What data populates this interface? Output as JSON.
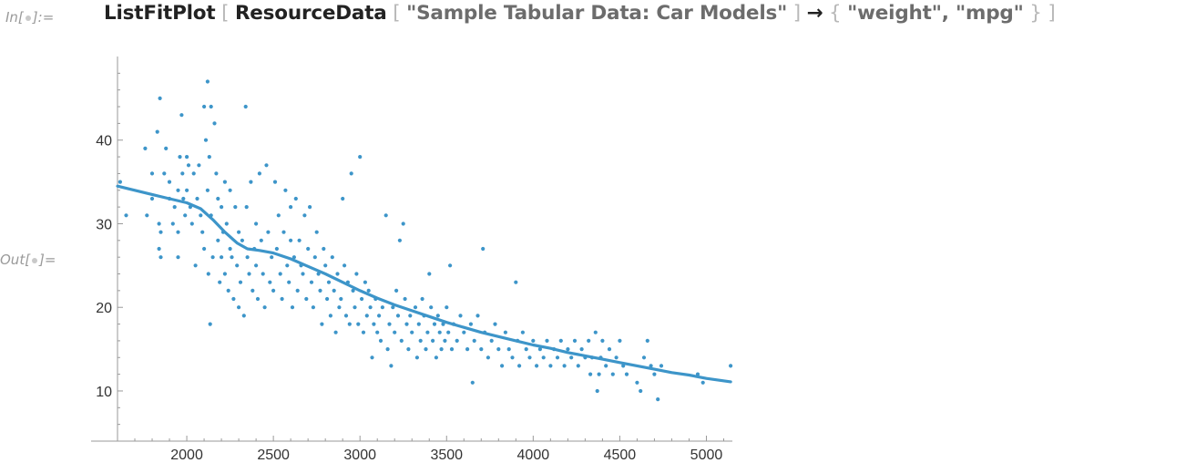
{
  "notebook": {
    "in_prefix": "In[",
    "in_suffix": "]:=",
    "out_prefix": "Out[",
    "out_suffix": "]=",
    "code": {
      "func": "ListFitPlot",
      "open1": " [ ",
      "inner_func": "ResourceData",
      "open2": " [ ",
      "string1": "\"Sample Tabular Data: Car Models\"",
      "close2": " ] ",
      "arrow": "→",
      "open3": " { ",
      "string2": "\"weight\"",
      "comma": ", ",
      "string3": "\"mpg\"",
      "close3": " } ",
      "close1": "]"
    }
  },
  "colors": {
    "points": "#3d95c9",
    "fit": "#3d95c9",
    "axis": "#999999"
  },
  "chart_data": {
    "type": "scatter",
    "title": "",
    "xlabel": "",
    "ylabel": "",
    "xlim": [
      1600,
      5150
    ],
    "ylim": [
      4,
      50
    ],
    "x_ticks": [
      2000,
      2500,
      3000,
      3500,
      4000,
      4500,
      5000
    ],
    "y_ticks": [
      10,
      20,
      30,
      40
    ],
    "series": [
      {
        "kind": "points",
        "points": [
          [
            1615,
            35
          ],
          [
            1650,
            31
          ],
          [
            1760,
            39
          ],
          [
            1770,
            31
          ],
          [
            1800,
            36
          ],
          [
            1800,
            33
          ],
          [
            1830,
            41
          ],
          [
            1840,
            30
          ],
          [
            1840,
            27
          ],
          [
            1845,
            45
          ],
          [
            1850,
            29
          ],
          [
            1850,
            26
          ],
          [
            1870,
            36
          ],
          [
            1880,
            39
          ],
          [
            1900,
            35
          ],
          [
            1900,
            33
          ],
          [
            1920,
            30
          ],
          [
            1930,
            32
          ],
          [
            1950,
            34
          ],
          [
            1950,
            29
          ],
          [
            1950,
            26
          ],
          [
            1960,
            38
          ],
          [
            1970,
            43
          ],
          [
            1975,
            36
          ],
          [
            1980,
            33
          ],
          [
            1990,
            31
          ],
          [
            2000,
            34
          ],
          [
            2000,
            38
          ],
          [
            2010,
            37
          ],
          [
            2020,
            32
          ],
          [
            2030,
            30
          ],
          [
            2040,
            36
          ],
          [
            2050,
            25
          ],
          [
            2060,
            33
          ],
          [
            2070,
            37
          ],
          [
            2080,
            31
          ],
          [
            2090,
            29
          ],
          [
            2100,
            44
          ],
          [
            2100,
            27
          ],
          [
            2110,
            40
          ],
          [
            2120,
            47
          ],
          [
            2120,
            34
          ],
          [
            2125,
            24
          ],
          [
            2130,
            38
          ],
          [
            2135,
            18
          ],
          [
            2140,
            44
          ],
          [
            2140,
            31
          ],
          [
            2150,
            26
          ],
          [
            2160,
            42
          ],
          [
            2170,
            36
          ],
          [
            2180,
            33
          ],
          [
            2180,
            28
          ],
          [
            2190,
            23
          ],
          [
            2200,
            32
          ],
          [
            2200,
            26
          ],
          [
            2210,
            29
          ],
          [
            2220,
            35
          ],
          [
            2220,
            24
          ],
          [
            2230,
            30
          ],
          [
            2240,
            22
          ],
          [
            2250,
            34
          ],
          [
            2250,
            27
          ],
          [
            2260,
            26
          ],
          [
            2270,
            21
          ],
          [
            2280,
            32
          ],
          [
            2290,
            25
          ],
          [
            2300,
            29
          ],
          [
            2300,
            20
          ],
          [
            2310,
            23
          ],
          [
            2320,
            28
          ],
          [
            2330,
            19
          ],
          [
            2340,
            44
          ],
          [
            2345,
            32
          ],
          [
            2350,
            26
          ],
          [
            2360,
            24
          ],
          [
            2370,
            35
          ],
          [
            2380,
            22
          ],
          [
            2390,
            27
          ],
          [
            2400,
            30
          ],
          [
            2400,
            25
          ],
          [
            2410,
            21
          ],
          [
            2420,
            36
          ],
          [
            2430,
            28
          ],
          [
            2440,
            24
          ],
          [
            2450,
            20
          ],
          [
            2460,
            37
          ],
          [
            2470,
            29
          ],
          [
            2480,
            23
          ],
          [
            2490,
            26
          ],
          [
            2500,
            22
          ],
          [
            2510,
            35
          ],
          [
            2520,
            27
          ],
          [
            2530,
            31
          ],
          [
            2540,
            24
          ],
          [
            2550,
            21
          ],
          [
            2560,
            29
          ],
          [
            2570,
            34
          ],
          [
            2580,
            25
          ],
          [
            2590,
            23
          ],
          [
            2600,
            32
          ],
          [
            2600,
            28
          ],
          [
            2610,
            20
          ],
          [
            2620,
            26
          ],
          [
            2630,
            33
          ],
          [
            2640,
            22
          ],
          [
            2650,
            28
          ],
          [
            2660,
            25
          ],
          [
            2670,
            24
          ],
          [
            2680,
            31
          ],
          [
            2690,
            21
          ],
          [
            2700,
            27
          ],
          [
            2710,
            32
          ],
          [
            2720,
            23
          ],
          [
            2730,
            20
          ],
          [
            2740,
            26
          ],
          [
            2750,
            29
          ],
          [
            2760,
            24
          ],
          [
            2770,
            22
          ],
          [
            2780,
            18
          ],
          [
            2790,
            27
          ],
          [
            2800,
            25
          ],
          [
            2810,
            21
          ],
          [
            2820,
            23
          ],
          [
            2830,
            19
          ],
          [
            2840,
            26
          ],
          [
            2850,
            22
          ],
          [
            2860,
            17
          ],
          [
            2870,
            24
          ],
          [
            2880,
            20
          ],
          [
            2890,
            21
          ],
          [
            2900,
            33
          ],
          [
            2910,
            25
          ],
          [
            2920,
            19
          ],
          [
            2930,
            23
          ],
          [
            2940,
            18
          ],
          [
            2950,
            36
          ],
          [
            2960,
            22
          ],
          [
            2970,
            20
          ],
          [
            2980,
            24
          ],
          [
            2990,
            18
          ],
          [
            3000,
            38
          ],
          [
            3010,
            21
          ],
          [
            3020,
            17
          ],
          [
            3030,
            23
          ],
          [
            3040,
            19
          ],
          [
            3050,
            22
          ],
          [
            3060,
            20
          ],
          [
            3070,
            14
          ],
          [
            3080,
            18
          ],
          [
            3090,
            21
          ],
          [
            3100,
            17
          ],
          [
            3110,
            19
          ],
          [
            3120,
            16
          ],
          [
            3130,
            20
          ],
          [
            3150,
            31
          ],
          [
            3160,
            15
          ],
          [
            3170,
            18
          ],
          [
            3180,
            13
          ],
          [
            3190,
            20
          ],
          [
            3200,
            17
          ],
          [
            3210,
            22
          ],
          [
            3220,
            19
          ],
          [
            3230,
            28
          ],
          [
            3240,
            16
          ],
          [
            3250,
            30
          ],
          [
            3260,
            21
          ],
          [
            3270,
            18
          ],
          [
            3280,
            15
          ],
          [
            3290,
            19
          ],
          [
            3300,
            17
          ],
          [
            3320,
            20
          ],
          [
            3330,
            14
          ],
          [
            3340,
            18
          ],
          [
            3350,
            16
          ],
          [
            3360,
            21
          ],
          [
            3370,
            19
          ],
          [
            3380,
            15
          ],
          [
            3390,
            17
          ],
          [
            3400,
            24
          ],
          [
            3410,
            20
          ],
          [
            3420,
            16
          ],
          [
            3430,
            18
          ],
          [
            3440,
            14
          ],
          [
            3450,
            19
          ],
          [
            3460,
            17
          ],
          [
            3470,
            15
          ],
          [
            3480,
            18
          ],
          [
            3490,
            16
          ],
          [
            3500,
            20
          ],
          [
            3510,
            17
          ],
          [
            3520,
            25
          ],
          [
            3530,
            15
          ],
          [
            3540,
            18
          ],
          [
            3560,
            16
          ],
          [
            3580,
            19
          ],
          [
            3600,
            17
          ],
          [
            3620,
            15
          ],
          [
            3640,
            18
          ],
          [
            3650,
            11
          ],
          [
            3660,
            16
          ],
          [
            3680,
            19
          ],
          [
            3700,
            15
          ],
          [
            3710,
            27
          ],
          [
            3720,
            17
          ],
          [
            3740,
            14
          ],
          [
            3760,
            16
          ],
          [
            3780,
            18
          ],
          [
            3800,
            15
          ],
          [
            3820,
            13
          ],
          [
            3840,
            17
          ],
          [
            3860,
            15
          ],
          [
            3880,
            14
          ],
          [
            3900,
            23
          ],
          [
            3910,
            16
          ],
          [
            3920,
            13
          ],
          [
            3940,
            17
          ],
          [
            3960,
            15
          ],
          [
            3980,
            14
          ],
          [
            4000,
            16
          ],
          [
            4020,
            13
          ],
          [
            4040,
            15
          ],
          [
            4060,
            14
          ],
          [
            4080,
            16
          ],
          [
            4100,
            13
          ],
          [
            4120,
            15
          ],
          [
            4140,
            14
          ],
          [
            4160,
            16
          ],
          [
            4180,
            13
          ],
          [
            4200,
            15
          ],
          [
            4220,
            14
          ],
          [
            4240,
            16
          ],
          [
            4260,
            13
          ],
          [
            4280,
            15
          ],
          [
            4300,
            14
          ],
          [
            4320,
            16
          ],
          [
            4330,
            12
          ],
          [
            4340,
            14
          ],
          [
            4360,
            17
          ],
          [
            4370,
            10
          ],
          [
            4380,
            12
          ],
          [
            4390,
            14
          ],
          [
            4400,
            16
          ],
          [
            4420,
            13
          ],
          [
            4440,
            15
          ],
          [
            4460,
            12
          ],
          [
            4480,
            14
          ],
          [
            4500,
            16
          ],
          [
            4520,
            13
          ],
          [
            4540,
            12
          ],
          [
            4600,
            11
          ],
          [
            4620,
            10
          ],
          [
            4640,
            14
          ],
          [
            4660,
            16
          ],
          [
            4680,
            13
          ],
          [
            4700,
            12
          ],
          [
            4720,
            9
          ],
          [
            4740,
            13
          ],
          [
            4950,
            12
          ],
          [
            4980,
            11
          ],
          [
            5140,
            13
          ]
        ]
      },
      {
        "kind": "fit",
        "points": [
          [
            1600,
            34.5
          ],
          [
            1700,
            34.0
          ],
          [
            1800,
            33.5
          ],
          [
            1900,
            33.0
          ],
          [
            2000,
            32.5
          ],
          [
            2080,
            31.8
          ],
          [
            2150,
            30.5
          ],
          [
            2220,
            29.0
          ],
          [
            2290,
            27.7
          ],
          [
            2350,
            27.0
          ],
          [
            2420,
            26.8
          ],
          [
            2500,
            26.5
          ],
          [
            2600,
            25.8
          ],
          [
            2700,
            24.9
          ],
          [
            2800,
            24.0
          ],
          [
            2900,
            23.0
          ],
          [
            3000,
            22.0
          ],
          [
            3100,
            21.1
          ],
          [
            3200,
            20.3
          ],
          [
            3300,
            19.6
          ],
          [
            3400,
            18.9
          ],
          [
            3500,
            18.2
          ],
          [
            3600,
            17.6
          ],
          [
            3700,
            17.0
          ],
          [
            3800,
            16.5
          ],
          [
            3900,
            16.0
          ],
          [
            4000,
            15.5
          ],
          [
            4100,
            15.1
          ],
          [
            4200,
            14.6
          ],
          [
            4300,
            14.2
          ],
          [
            4400,
            13.8
          ],
          [
            4500,
            13.4
          ],
          [
            4600,
            13.0
          ],
          [
            4700,
            12.6
          ],
          [
            4800,
            12.2
          ],
          [
            4900,
            11.9
          ],
          [
            5000,
            11.5
          ],
          [
            5140,
            11.1
          ]
        ]
      }
    ]
  }
}
